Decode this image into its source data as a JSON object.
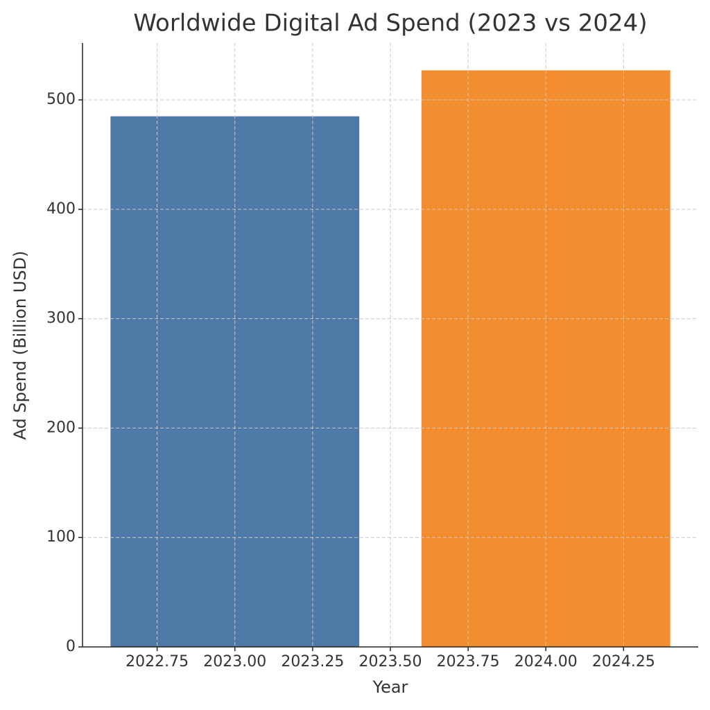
{
  "chart_data": {
    "type": "bar",
    "title": "Worldwide Digital Ad Spend (2023 vs 2024)",
    "x_label": "Year",
    "y_label": "Ad Spend (Billion USD)",
    "x": [
      2023,
      2024
    ],
    "values": [
      485,
      527
    ],
    "colors": [
      "#4e78a5",
      "#f28e2f"
    ],
    "xlim": [
      2022.51,
      2024.49
    ],
    "xticks": [
      2022.75,
      {
        "value": 2023,
        "label": "2023.00"
      },
      2023.25,
      {
        "value": 2023.5,
        "label": "2023.50"
      },
      2023.75,
      {
        "value": 2024,
        "label": "2024.00"
      },
      2024.25
    ],
    "ylim": [
      0,
      552
    ],
    "yticks": [
      0,
      100,
      200,
      300,
      400,
      500
    ],
    "grid": true
  }
}
